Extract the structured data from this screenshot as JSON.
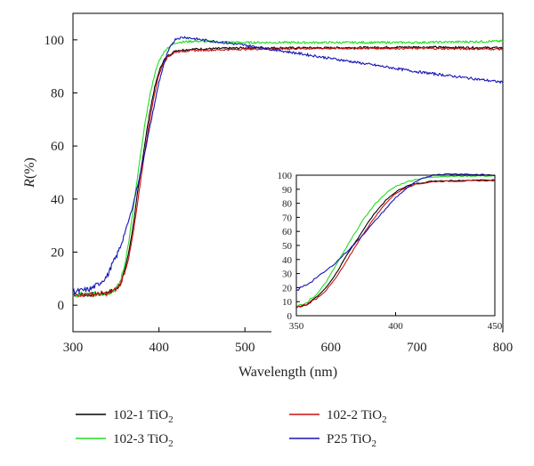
{
  "chart_data": {
    "type": "line",
    "xlabel": "Wavelength (nm)",
    "ylabel_italic": "R",
    "ylabel_rest": "(%)",
    "xlim": [
      300,
      800
    ],
    "ylim": [
      -10,
      110
    ],
    "xticks": [
      300,
      400,
      500,
      600,
      700,
      800
    ],
    "yticks": [
      0,
      20,
      40,
      60,
      80,
      100
    ],
    "grid": false,
    "legend_position": "bottom",
    "series": [
      {
        "name_main": "102-1 TiO",
        "name_sub": "2",
        "color": "#000000",
        "points": [
          [
            300,
            4
          ],
          [
            320,
            4
          ],
          [
            340,
            4.5
          ],
          [
            350,
            6
          ],
          [
            355,
            8
          ],
          [
            360,
            13
          ],
          [
            365,
            20
          ],
          [
            370,
            30
          ],
          [
            375,
            42
          ],
          [
            380,
            53
          ],
          [
            385,
            64
          ],
          [
            390,
            74
          ],
          [
            395,
            82
          ],
          [
            400,
            88
          ],
          [
            405,
            92
          ],
          [
            410,
            94
          ],
          [
            420,
            96
          ],
          [
            440,
            96.5
          ],
          [
            500,
            97
          ],
          [
            600,
            97
          ],
          [
            700,
            97.3
          ],
          [
            800,
            97
          ]
        ]
      },
      {
        "name_main": "102-3 TiO",
        "name_sub": "2",
        "color": "#22dd22",
        "points": [
          [
            300,
            4
          ],
          [
            320,
            4
          ],
          [
            340,
            4.5
          ],
          [
            350,
            6
          ],
          [
            355,
            9
          ],
          [
            360,
            15
          ],
          [
            365,
            24
          ],
          [
            370,
            36
          ],
          [
            375,
            48
          ],
          [
            380,
            60
          ],
          [
            385,
            71
          ],
          [
            390,
            80
          ],
          [
            395,
            87
          ],
          [
            400,
            92
          ],
          [
            405,
            95
          ],
          [
            410,
            97
          ],
          [
            420,
            99
          ],
          [
            440,
            99.5
          ],
          [
            500,
            99
          ],
          [
            600,
            99
          ],
          [
            700,
            99
          ],
          [
            800,
            99.5
          ]
        ]
      },
      {
        "name_main": "102-2 TiO",
        "name_sub": "2",
        "color": "#cc1111",
        "points": [
          [
            300,
            4
          ],
          [
            320,
            4
          ],
          [
            340,
            4.5
          ],
          [
            350,
            6
          ],
          [
            355,
            8
          ],
          [
            360,
            12
          ],
          [
            365,
            18
          ],
          [
            370,
            27
          ],
          [
            375,
            38
          ],
          [
            380,
            50
          ],
          [
            385,
            61
          ],
          [
            390,
            71
          ],
          [
            395,
            80
          ],
          [
            400,
            87
          ],
          [
            405,
            91
          ],
          [
            410,
            93.5
          ],
          [
            420,
            95.5
          ],
          [
            440,
            96
          ],
          [
            500,
            96.5
          ],
          [
            600,
            96.8
          ],
          [
            700,
            96.8
          ],
          [
            800,
            96.5
          ]
        ]
      },
      {
        "name_main": "P25 TiO",
        "name_sub": "2",
        "color": "#1414b4",
        "points": [
          [
            300,
            5
          ],
          [
            310,
            5.5
          ],
          [
            320,
            6
          ],
          [
            330,
            8
          ],
          [
            340,
            11
          ],
          [
            345,
            15
          ],
          [
            350,
            18
          ],
          [
            355,
            22
          ],
          [
            360,
            27
          ],
          [
            365,
            32
          ],
          [
            370,
            38
          ],
          [
            375,
            45
          ],
          [
            380,
            52
          ],
          [
            385,
            60
          ],
          [
            390,
            68
          ],
          [
            395,
            76
          ],
          [
            400,
            84
          ],
          [
            405,
            90
          ],
          [
            410,
            95
          ],
          [
            415,
            98.5
          ],
          [
            420,
            100.5
          ],
          [
            430,
            101
          ],
          [
            440,
            100.5
          ],
          [
            450,
            100
          ],
          [
            500,
            98
          ],
          [
            550,
            95.5
          ],
          [
            600,
            93
          ],
          [
            650,
            90.5
          ],
          [
            700,
            88
          ],
          [
            750,
            86
          ],
          [
            800,
            84
          ]
        ]
      }
    ],
    "inset": {
      "xlim": [
        350,
        450
      ],
      "ylim": [
        0,
        100
      ],
      "xticks": [
        350,
        400,
        450
      ],
      "yticks": [
        0,
        10,
        20,
        30,
        40,
        50,
        60,
        70,
        80,
        90,
        100
      ]
    }
  }
}
